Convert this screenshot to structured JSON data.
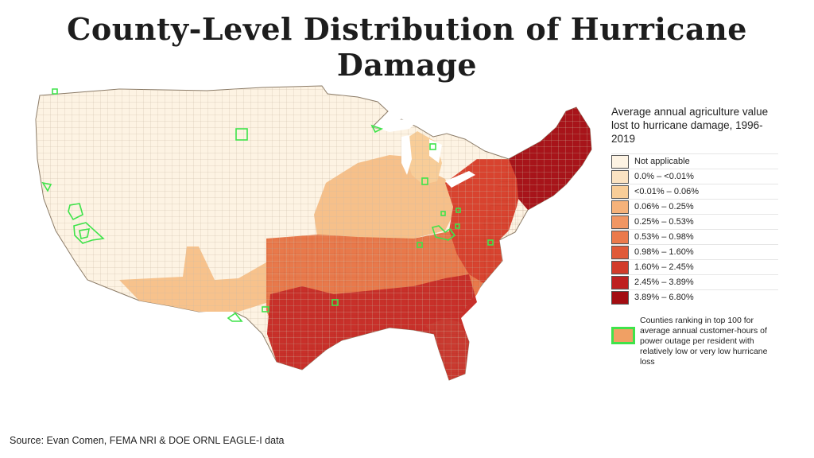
{
  "title": "County-Level Distribution of Hurricane Damage",
  "source": "Source: Evan Comen, FEMA NRI & DOE ORNL EAGLE-I data",
  "legend": {
    "title": "Average annual agriculture value lost to hurricane damage, 1996-2019",
    "classes": [
      {
        "label": "Not applicable",
        "color": "#fdf3e3"
      },
      {
        "label": "0.0% – <0.01%",
        "color": "#fbe3c2"
      },
      {
        "label": "<0.01% – 0.06%",
        "color": "#f8cd98"
      },
      {
        "label": "0.06% – 0.25%",
        "color": "#f5b27a"
      },
      {
        "label": "0.25% – 0.53%",
        "color": "#f19663"
      },
      {
        "label": "0.53% – 0.98%",
        "color": "#eb7a4c"
      },
      {
        "label": "0.98% – 1.60%",
        "color": "#e05a39"
      },
      {
        "label": "1.60% – 2.45%",
        "color": "#d23b2a"
      },
      {
        "label": "2.45% – 3.89%",
        "color": "#be2020"
      },
      {
        "label": "3.89% – 6.80%",
        "color": "#a30d12"
      }
    ],
    "outage_note": "Counties ranking in top 100 for average annual customer-hours of power outage per resident with relatively low or very low hurricane loss",
    "outage_color": "#3fe34a"
  }
}
